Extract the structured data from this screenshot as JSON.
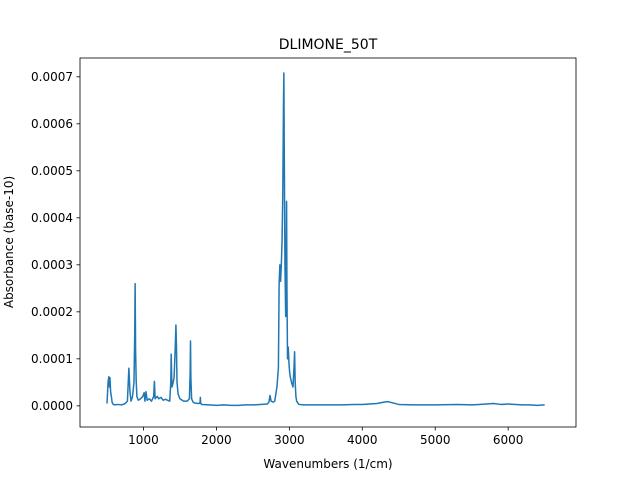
{
  "chart_data": {
    "type": "line",
    "title": "DLIMONE_50T",
    "xlabel": "Wavenumbers (1/cm)",
    "ylabel": "Absorbance (base-10)",
    "xlim": [
      130,
      6930
    ],
    "ylim": [
      -4.5e-05,
      0.00074
    ],
    "grid": false,
    "legend": "none",
    "x_ticks": [
      1000,
      2000,
      3000,
      4000,
      5000,
      6000
    ],
    "x_tick_labels": [
      "1000",
      "2000",
      "3000",
      "4000",
      "5000",
      "6000"
    ],
    "y_ticks": [
      0,
      0.0001,
      0.0002,
      0.0003,
      0.0004,
      0.0005,
      0.0006,
      0.0007
    ],
    "y_tick_labels": [
      "0.0000",
      "0.0001",
      "0.0002",
      "0.0003",
      "0.0004",
      "0.0005",
      "0.0006",
      "0.0007"
    ],
    "line_color": "#1f77b4",
    "series": [
      {
        "x": [
          500,
          515,
          525,
          535,
          540,
          550,
          560,
          570,
          580,
          600,
          650,
          700,
          750,
          780,
          800,
          815,
          830,
          850,
          870,
          880,
          886,
          892,
          900,
          910,
          930,
          960,
          990,
          1010,
          1020,
          1035,
          1050,
          1080,
          1110,
          1140,
          1150,
          1160,
          1175,
          1190,
          1210,
          1240,
          1270,
          1300,
          1330,
          1360,
          1375,
          1380,
          1390,
          1400,
          1420,
          1435,
          1445,
          1452,
          1460,
          1475,
          1500,
          1550,
          1600,
          1630,
          1640,
          1645,
          1650,
          1660,
          1680,
          1700,
          1750,
          1775,
          1780,
          1785,
          1800,
          1900,
          2000,
          2100,
          2200,
          2300,
          2400,
          2500,
          2600,
          2700,
          2720,
          2735,
          2750,
          2780,
          2800,
          2830,
          2850,
          2860,
          2870,
          2880,
          2890,
          2900,
          2910,
          2920,
          2925,
          2930,
          2940,
          2950,
          2957,
          2962,
          2967,
          2975,
          2985,
          2995,
          3005,
          3015,
          3030,
          3050,
          3065,
          3072,
          3080,
          3090,
          3100,
          3130,
          3200,
          3300,
          3500,
          3700,
          3900,
          4000,
          4100,
          4200,
          4300,
          4350,
          4400,
          4500,
          4700,
          5000,
          5300,
          5500,
          5600,
          5700,
          5800,
          5900,
          6000,
          6100,
          6200,
          6300,
          6400,
          6500
        ],
        "values": [
          5e-06,
          5e-05,
          6.2e-05,
          4e-05,
          6e-05,
          3e-05,
          2e-05,
          8e-06,
          4e-06,
          2e-06,
          3e-06,
          2e-06,
          5e-06,
          1e-05,
          8e-05,
          3e-05,
          1e-05,
          2e-05,
          5e-05,
          0.00015,
          0.00026,
          0.00012,
          5.5e-05,
          2e-05,
          1.2e-05,
          1.5e-05,
          2e-05,
          2.8e-05,
          1e-05,
          3e-05,
          1.2e-05,
          1.5e-05,
          1e-05,
          2e-05,
          5.2e-05,
          1.5e-05,
          1.8e-05,
          2e-05,
          1.5e-05,
          1.8e-05,
          1.2e-05,
          1.4e-05,
          1.2e-05,
          1e-05,
          5e-05,
          0.00011,
          4e-05,
          4.5e-05,
          6e-05,
          0.00012,
          0.000172,
          0.00013,
          5e-05,
          2.5e-05,
          1.5e-05,
          1e-05,
          1e-05,
          1.5e-05,
          7e-05,
          0.000138,
          6e-05,
          1.5e-05,
          8e-06,
          6e-06,
          5e-06,
          6e-06,
          1.8e-05,
          5e-06,
          3e-06,
          2e-06,
          1e-06,
          2e-06,
          1e-06,
          1e-06,
          2e-06,
          2e-06,
          3e-06,
          4e-06,
          8e-06,
          2.2e-05,
          1e-05,
          8e-06,
          1e-05,
          4e-05,
          8e-05,
          0.00026,
          0.0003,
          0.000265,
          0.0003,
          0.00035,
          0.00045,
          0.00065,
          0.000708,
          0.00055,
          0.0003,
          0.00019,
          0.0003,
          0.000435,
          0.00025,
          0.0001,
          0.000125,
          9e-05,
          7e-05,
          6e-05,
          5e-05,
          4e-05,
          8.5e-05,
          0.000115,
          5e-05,
          2e-05,
          1e-05,
          3e-06,
          2e-06,
          2e-06,
          2e-06,
          2e-06,
          3e-06,
          3e-06,
          4e-06,
          5e-06,
          8e-06,
          9e-06,
          7e-06,
          3e-06,
          2e-06,
          2e-06,
          3e-06,
          2e-06,
          3e-06,
          4e-06,
          5e-06,
          3e-06,
          4e-06,
          3e-06,
          2e-06,
          2e-06,
          1e-06,
          2e-06
        ]
      }
    ]
  }
}
